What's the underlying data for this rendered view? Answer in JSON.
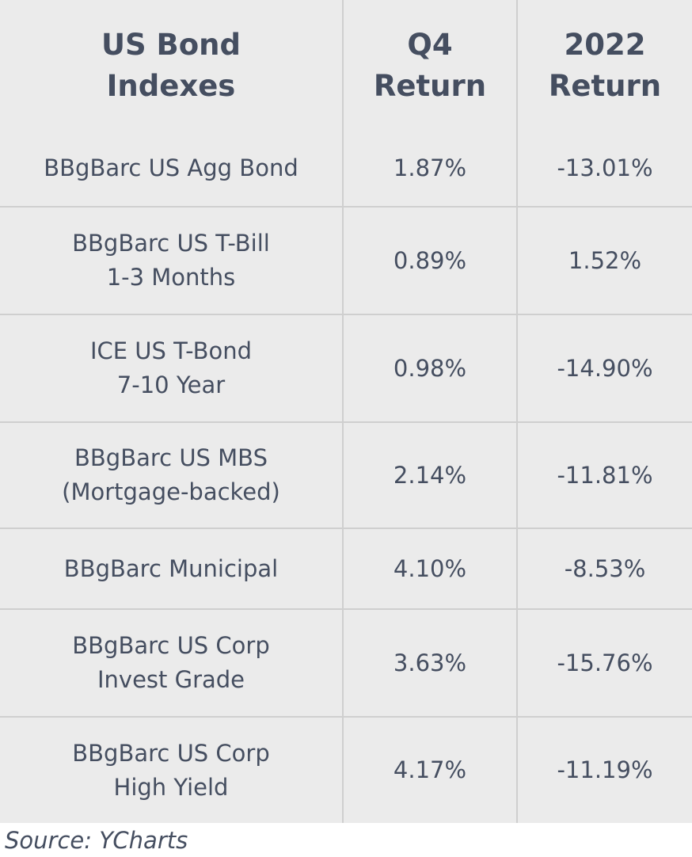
{
  "table": {
    "headers": [
      [
        "US Bond",
        "Indexes"
      ],
      [
        "Q4",
        "Return"
      ],
      [
        "2022",
        "Return"
      ]
    ],
    "rows": [
      {
        "name": [
          "BBgBarc US Agg Bond"
        ],
        "q4": "1.87%",
        "y2022": "-13.01%"
      },
      {
        "name": [
          "BBgBarc US T-Bill",
          "1-3 Months"
        ],
        "q4": "0.89%",
        "y2022": "1.52%"
      },
      {
        "name": [
          "ICE US T-Bond",
          "7-10 Year"
        ],
        "q4": "0.98%",
        "y2022": "-14.90%"
      },
      {
        "name": [
          "BBgBarc US MBS",
          "(Mortgage-backed)"
        ],
        "q4": "2.14%",
        "y2022": "-11.81%"
      },
      {
        "name": [
          "BBgBarc Municipal"
        ],
        "q4": "4.10%",
        "y2022": "-8.53%"
      },
      {
        "name": [
          "BBgBarc US Corp",
          "Invest Grade"
        ],
        "q4": "3.63%",
        "y2022": "-15.76%"
      },
      {
        "name": [
          "BBgBarc US Corp",
          "High Yield"
        ],
        "q4": "4.17%",
        "y2022": "-11.19%"
      }
    ]
  },
  "source": "Source: YCharts",
  "colors": {
    "table_background": "#ebebeb",
    "text": "#454e60",
    "grid": "#cfcfcf"
  }
}
